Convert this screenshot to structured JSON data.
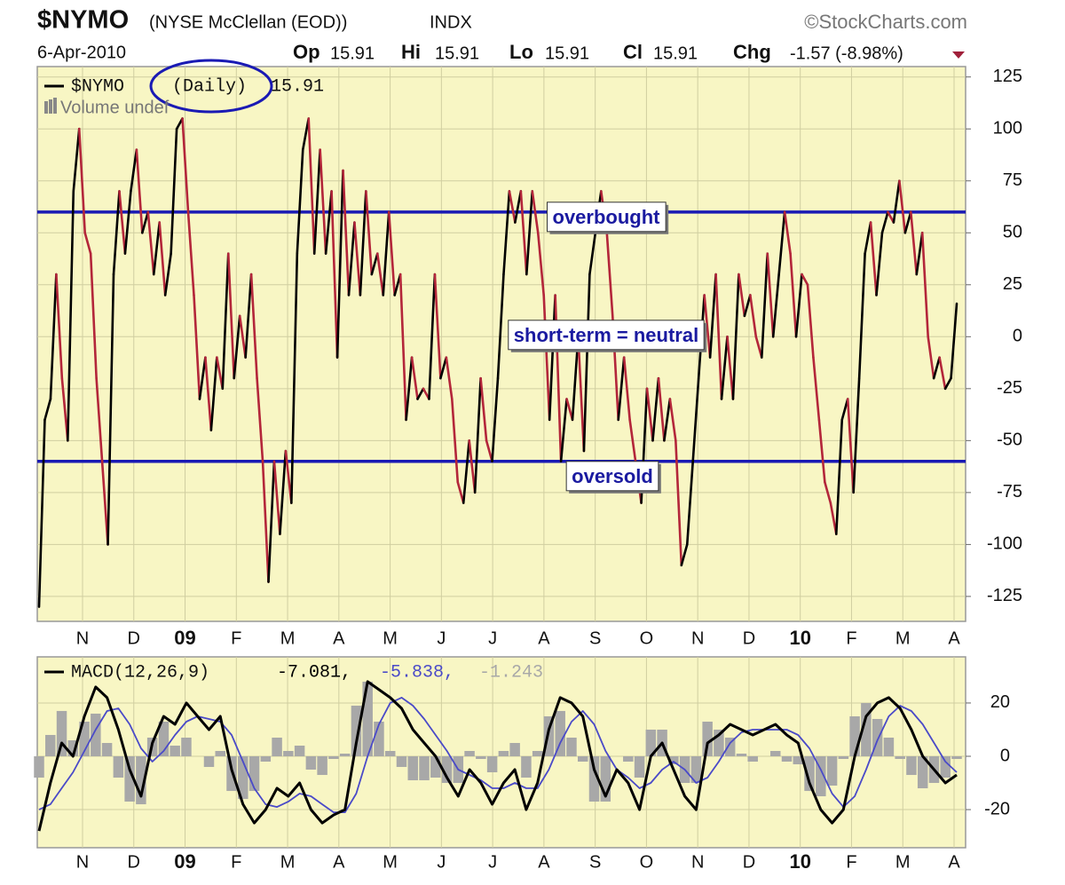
{
  "header": {
    "symbol": "$NYMO",
    "name": "(NYSE McClellan (EOD))",
    "exchange": "INDX",
    "credit": "©StockCharts.com",
    "date": "6-Apr-2010",
    "quote": [
      {
        "label": "Op",
        "value": 15.91
      },
      {
        "label": "Hi",
        "value": 15.91
      },
      {
        "label": "Lo",
        "value": 15.91
      },
      {
        "label": "Cl",
        "value": 15.91
      },
      {
        "label": "Chg",
        "value": "-1.57 (-8.98%)"
      }
    ]
  },
  "chart_data": [
    {
      "type": "line",
      "ylim": [
        -137,
        130
      ],
      "yticks": [
        -125,
        -100,
        -75,
        -50,
        -25,
        0,
        25,
        50,
        75,
        100,
        125
      ],
      "grid": true,
      "background": "#f8f6c4",
      "xtick_labels": [
        "N",
        "D",
        "09",
        "F",
        "M",
        "A",
        "M",
        "J",
        "J",
        "A",
        "S",
        "O",
        "N",
        "D",
        "10",
        "F",
        "M",
        "A"
      ],
      "legend": {
        "period": "(Daily)",
        "last": 15.91,
        "volume": "Volume undef"
      },
      "series": [
        {
          "name": "$NYMO",
          "up_color": "#000000",
          "down_color": "#b3263a",
          "values": [
            -130,
            -40,
            -30,
            30,
            -20,
            -50,
            70,
            100,
            50,
            40,
            -20,
            -60,
            -100,
            30,
            70,
            40,
            70,
            90,
            50,
            60,
            30,
            55,
            20,
            40,
            100,
            105,
            60,
            20,
            -30,
            -10,
            -45,
            -10,
            -25,
            40,
            -20,
            10,
            -10,
            30,
            -20,
            -60,
            -118,
            -60,
            -95,
            -55,
            -80,
            40,
            90,
            105,
            40,
            90,
            40,
            70,
            -10,
            80,
            20,
            55,
            20,
            70,
            30,
            40,
            20,
            60,
            20,
            30,
            -40,
            -10,
            -30,
            -25,
            -30,
            30,
            -20,
            -10,
            -30,
            -70,
            -80,
            -50,
            -75,
            -20,
            -50,
            -60,
            -20,
            30,
            70,
            55,
            70,
            30,
            70,
            50,
            20,
            -40,
            20,
            -60,
            -30,
            -40,
            0,
            -55,
            30,
            50,
            70,
            50,
            10,
            -40,
            -10,
            -40,
            -60,
            -80,
            -25,
            -50,
            -20,
            -50,
            -30,
            -50,
            -110,
            -100,
            -60,
            -20,
            20,
            -10,
            30,
            -30,
            0,
            -30,
            30,
            10,
            20,
            0,
            -10,
            40,
            0,
            30,
            60,
            40,
            0,
            30,
            25,
            -10,
            -40,
            -70,
            -80,
            -95,
            -40,
            -30,
            -75,
            -20,
            40,
            55,
            20,
            50,
            60,
            55,
            75,
            50,
            60,
            30,
            50,
            0,
            -20,
            -10,
            -25,
            -20,
            15.91
          ]
        }
      ],
      "hlines": [
        {
          "value": 60,
          "color": "#1a1ab4"
        },
        {
          "value": -60,
          "color": "#1a1ab4"
        }
      ],
      "annotations": [
        "overbought",
        "short-term = neutral",
        "oversold"
      ]
    },
    {
      "type": "macd",
      "title": "MACD(12,26,9)",
      "ylim": [
        -34.3,
        37.3
      ],
      "yticks": [
        -20,
        0,
        20
      ],
      "grid": true,
      "background": "#f8f6c4",
      "xtick_labels": [
        "N",
        "D",
        "09",
        "F",
        "M",
        "A",
        "M",
        "J",
        "J",
        "A",
        "S",
        "O",
        "N",
        "D",
        "10",
        "F",
        "M",
        "A"
      ],
      "legend_values": [
        {
          "value": -7.081,
          "label": "-7.081,"
        },
        {
          "value": -5.838,
          "label": "-5.838,"
        },
        {
          "value": -1.243,
          "label": "-1.243"
        }
      ],
      "series": [
        {
          "name": "MACD",
          "color": "#000000",
          "values": [
            -28,
            -10,
            5,
            0,
            15,
            26,
            22,
            10,
            -5,
            -15,
            5,
            15,
            12,
            20,
            15,
            10,
            15,
            -5,
            -18,
            -25,
            -20,
            -12,
            -15,
            -10,
            -20,
            -25,
            -22,
            -20,
            5,
            28,
            25,
            22,
            18,
            10,
            5,
            0,
            -8,
            -15,
            -5,
            -10,
            -18,
            -10,
            -5,
            -20,
            -10,
            10,
            22,
            20,
            15,
            -5,
            -15,
            -5,
            -10,
            -20,
            0,
            5,
            -5,
            -15,
            -20,
            5,
            8,
            12,
            10,
            8,
            10,
            12,
            8,
            5,
            -10,
            -20,
            -25,
            -20,
            0,
            15,
            20,
            22,
            18,
            10,
            0,
            -5,
            -10,
            -7
          ]
        },
        {
          "name": "Signal",
          "color": "#4a4ac8",
          "values": [
            -20,
            -18,
            -12,
            -6,
            2,
            10,
            17,
            18,
            12,
            3,
            -2,
            2,
            8,
            13,
            15,
            14,
            13,
            8,
            -2,
            -12,
            -18,
            -19,
            -17,
            -14,
            -15,
            -18,
            -21,
            -21,
            -14,
            0,
            12,
            20,
            22,
            19,
            14,
            8,
            2,
            -5,
            -7,
            -9,
            -12,
            -12,
            -10,
            -12,
            -12,
            -5,
            5,
            13,
            17,
            12,
            2,
            -5,
            -8,
            -12,
            -10,
            -5,
            -2,
            -5,
            -10,
            -8,
            -2,
            5,
            9,
            10,
            10,
            10,
            10,
            8,
            3,
            -5,
            -14,
            -19,
            -15,
            -5,
            6,
            15,
            19,
            17,
            12,
            5,
            -2,
            -6
          ]
        },
        {
          "name": "Histogram",
          "color": "#a8a8a8",
          "values": [
            -8,
            8,
            17,
            6,
            13,
            16,
            5,
            -8,
            -17,
            -18,
            7,
            13,
            4,
            7,
            0,
            -4,
            2,
            -13,
            -16,
            -13,
            -2,
            7,
            2,
            4,
            -5,
            -7,
            -1,
            1,
            19,
            28,
            13,
            2,
            -4,
            -9,
            -9,
            -8,
            -10,
            -10,
            2,
            -1,
            -6,
            2,
            5,
            -8,
            2,
            15,
            17,
            7,
            -2,
            -17,
            -17,
            0,
            -2,
            -8,
            10,
            10,
            -3,
            -10,
            -10,
            13,
            10,
            7,
            1,
            -2,
            0,
            2,
            -2,
            -3,
            -13,
            -15,
            -11,
            -1,
            15,
            20,
            14,
            7,
            -1,
            -7,
            -12,
            -10,
            -8,
            -1
          ]
        }
      ]
    }
  ]
}
